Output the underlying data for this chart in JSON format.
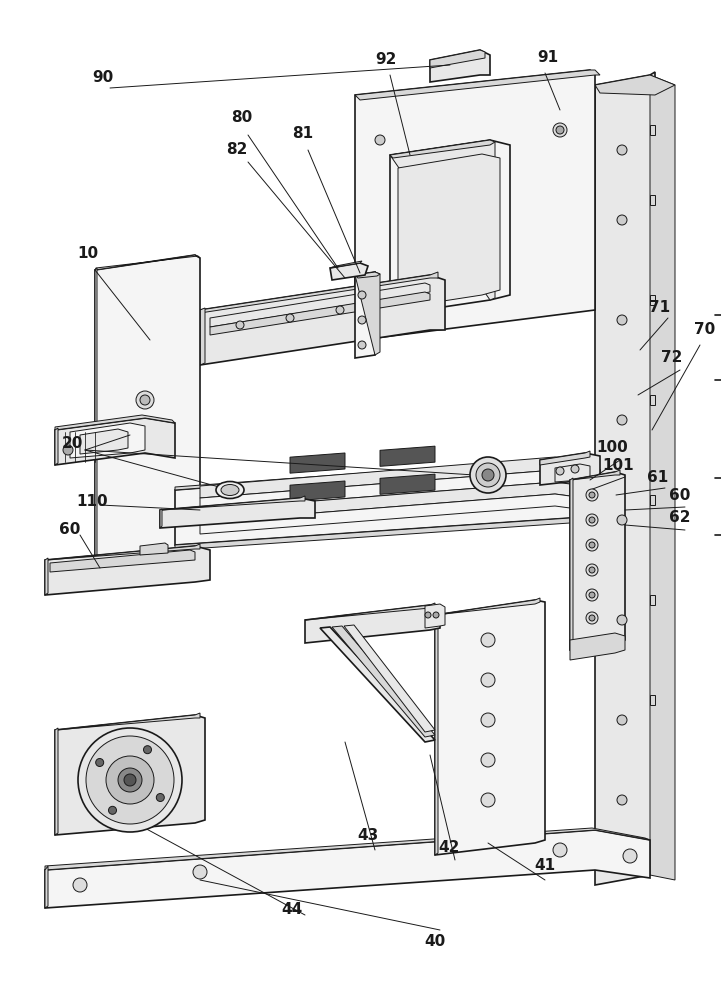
{
  "fig_width": 7.21,
  "fig_height": 10.0,
  "dpi": 100,
  "bg_color": "#ffffff",
  "lc": "#1a1a1a",
  "lw": 1.2,
  "tlw": 0.7,
  "fill_main": "#f2f2f2",
  "fill_dark": "#d8d8d8",
  "fill_mid": "#e8e8e8",
  "fill_light": "#f5f5f5"
}
